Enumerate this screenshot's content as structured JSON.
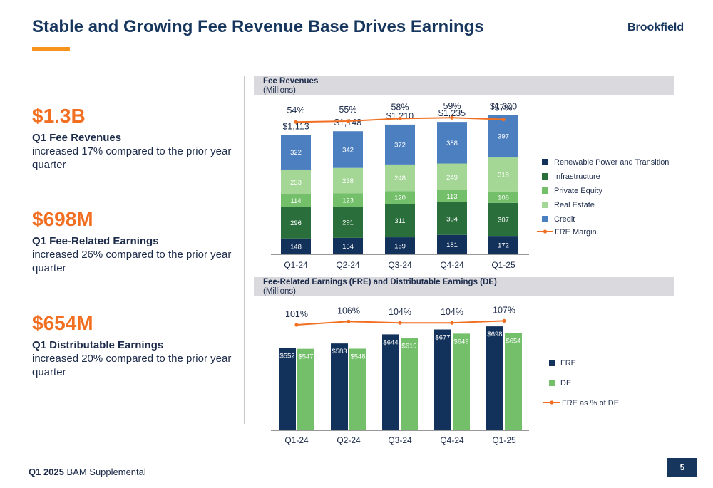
{
  "header": {
    "title": "Stable and Growing Fee Revenue Base Drives Earnings",
    "logo": "Brookfield"
  },
  "stats": [
    {
      "big": "$1.3B",
      "label": "Q1 Fee Revenues",
      "desc": "increased 17% compared to the prior year quarter"
    },
    {
      "big": "$698M",
      "label": "Q1 Fee-Related Earnings",
      "desc": "increased 26% compared to the prior year quarter"
    },
    {
      "big": "$654M",
      "label": "Q1 Distributable Earnings",
      "desc": "increased 20% compared to the prior year quarter"
    }
  ],
  "footer": {
    "bold": "Q1 2025",
    "rest": " BAM Supplemental",
    "page": "5"
  },
  "chart_data": [
    {
      "type": "bar",
      "stacked": true,
      "title": "Fee Revenues",
      "subtitle": "(Millions)",
      "categories": [
        "Q1-24",
        "Q2-24",
        "Q3-24",
        "Q4-24",
        "Q1-25"
      ],
      "series": [
        {
          "name": "Renewable Power and Transition",
          "color": "#13325b",
          "values": [
            148,
            154,
            159,
            181,
            172
          ]
        },
        {
          "name": "Infrastructure",
          "color": "#2a6e3b",
          "values": [
            296,
            291,
            311,
            304,
            307
          ]
        },
        {
          "name": "Private Equity",
          "color": "#73bf6a",
          "values": [
            114,
            123,
            120,
            113,
            106
          ]
        },
        {
          "name": "Real Estate",
          "color": "#a4d695",
          "values": [
            233,
            238,
            248,
            249,
            318
          ]
        },
        {
          "name": "Credit",
          "color": "#4b7fc0",
          "values": [
            322,
            342,
            372,
            388,
            397
          ]
        }
      ],
      "totals": [
        "$1,113",
        "$1,148",
        "$1,210",
        "$1,235",
        "$1,300"
      ],
      "line": {
        "name": "FRE Margin",
        "color": "#f26f21",
        "values": [
          54,
          55,
          58,
          59,
          57
        ],
        "labels": [
          "54%",
          "55%",
          "58%",
          "59%",
          "57%"
        ]
      },
      "legend": "right",
      "grid": false
    },
    {
      "type": "bar",
      "title": "Fee-Related Earnings (FRE) and Distributable Earnings (DE)",
      "subtitle": "(Millions)",
      "categories": [
        "Q1-24",
        "Q2-24",
        "Q3-24",
        "Q4-24",
        "Q1-25"
      ],
      "series": [
        {
          "name": "FRE",
          "color": "#13325b",
          "values": [
            552,
            583,
            644,
            677,
            698
          ],
          "labels": [
            "$552",
            "$583",
            "$644",
            "$677",
            "$698"
          ]
        },
        {
          "name": "DE",
          "color": "#73bf6a",
          "values": [
            547,
            548,
            619,
            649,
            654
          ],
          "labels": [
            "$547",
            "$548",
            "$619",
            "$649",
            "$654"
          ]
        }
      ],
      "line": {
        "name": "FRE as % of DE",
        "color": "#f26f21",
        "values": [
          101,
          106,
          104,
          104,
          107
        ],
        "labels": [
          "101%",
          "106%",
          "104%",
          "104%",
          "107%"
        ]
      },
      "legend": "right",
      "grid": false
    }
  ]
}
